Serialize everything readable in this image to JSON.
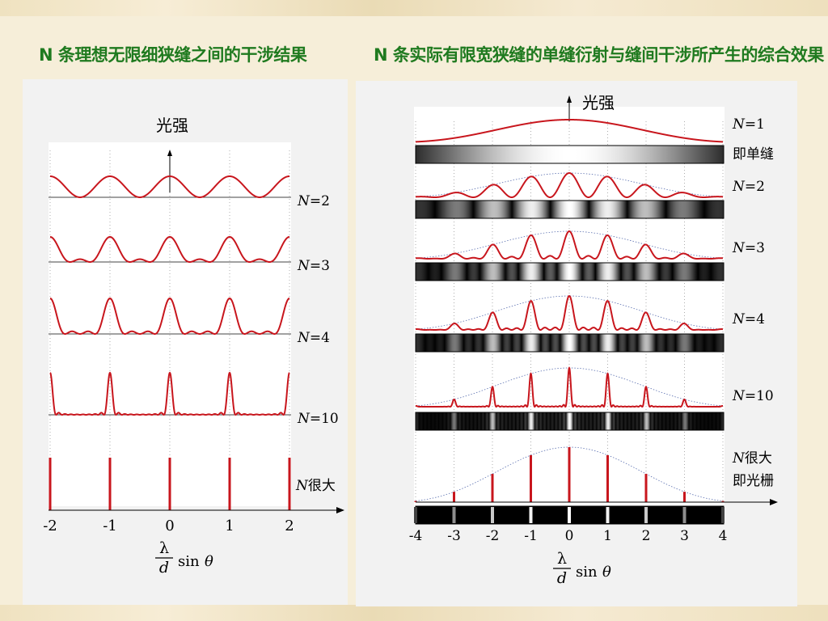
{
  "titles": {
    "left": "N 条理想无限细狭缝之间的干涉结果",
    "right": "N 条实际有限宽狭缝的单缝衍射与缝间干涉所产生的综合效果"
  },
  "left_chart": {
    "ylabel": "光强",
    "xlabel_num": "λ",
    "xlabel_den": "d",
    "xlabel_func": "sin",
    "xlabel_var": "θ",
    "x_ticks": [
      "-2",
      "-1",
      "0",
      "1",
      "2"
    ],
    "rows": [
      {
        "N_label": "N",
        "eq": "=2"
      },
      {
        "N_label": "N",
        "eq": "=3"
      },
      {
        "N_label": "N",
        "eq": "=4"
      },
      {
        "N_label": "N",
        "eq": "=10"
      },
      {
        "N_label": "N",
        "eq": "很大"
      }
    ]
  },
  "right_chart": {
    "ylabel": "光强",
    "xlabel_num": "λ",
    "xlabel_den": "d",
    "xlabel_func": "sin",
    "xlabel_var": "θ",
    "x_ticks": [
      "-4",
      "-3",
      "-2",
      "-1",
      "0",
      "1",
      "2",
      "3",
      "4"
    ],
    "rows": [
      {
        "N_label": "N",
        "eq": "=1",
        "sub": "即单缝"
      },
      {
        "N_label": "N",
        "eq": "=2",
        "sub": ""
      },
      {
        "N_label": "N",
        "eq": "=3",
        "sub": ""
      },
      {
        "N_label": "N",
        "eq": "=4",
        "sub": ""
      },
      {
        "N_label": "N",
        "eq": "=10",
        "sub": ""
      },
      {
        "N_label": "N",
        "eq": "很大",
        "sub": "即光栅"
      }
    ]
  },
  "colors": {
    "curve": "#c8161d",
    "title": "#1f7a1f",
    "envelope": "#5a6fb0"
  }
}
